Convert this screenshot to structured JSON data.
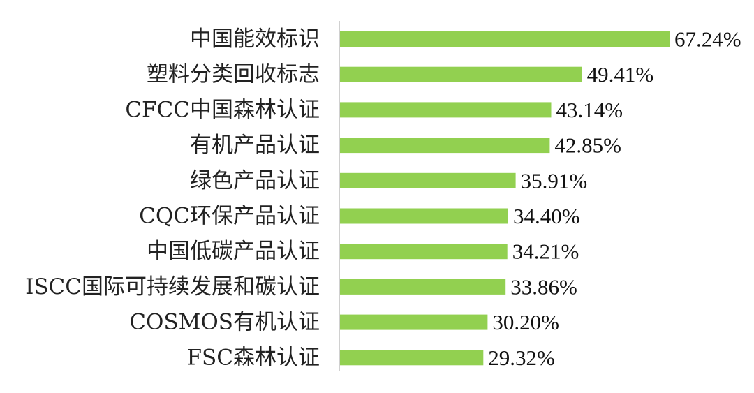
{
  "chart_data": {
    "type": "bar",
    "orientation": "horizontal",
    "categories": [
      "中国能效标识",
      "塑料分类回收标志",
      "CFCC中国森林认证",
      "有机产品认证",
      "绿色产品认证",
      "CQC环保产品认证",
      "中国低碳产品认证",
      "ISCC国际可持续发展和碳认证",
      "COSMOS有机认证",
      "FSC森林认证"
    ],
    "values": [
      67.24,
      49.41,
      43.14,
      42.85,
      35.91,
      34.4,
      34.21,
      33.86,
      30.2,
      29.32
    ],
    "value_labels": [
      "67.24%",
      "49.41%",
      "43.14%",
      "42.85%",
      "35.91%",
      "34.40%",
      "34.21%",
      "33.86%",
      "30.20%",
      "29.32%"
    ],
    "bar_color": "#92d050",
    "axis_color": "#d0d0d0",
    "xlim": [
      0,
      67.24
    ],
    "grid": false,
    "legend": "none"
  }
}
